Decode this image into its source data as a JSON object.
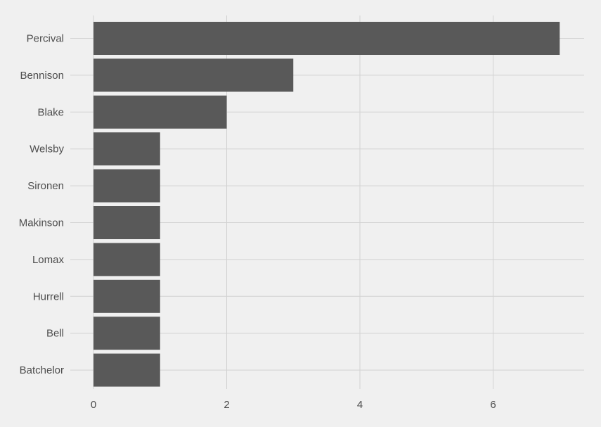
{
  "chart_data": {
    "type": "bar",
    "orientation": "horizontal",
    "title": "",
    "xlabel": "",
    "ylabel": "",
    "categories": [
      "Percival",
      "Bennison",
      "Blake",
      "Welsby",
      "Sironen",
      "Makinson",
      "Lomax",
      "Hurrell",
      "Bell",
      "Batchelor"
    ],
    "values": [
      7,
      3,
      2,
      1,
      1,
      1,
      1,
      1,
      1,
      1
    ],
    "xlim": [
      0,
      7.35
    ],
    "x_ticks": [
      0,
      2,
      4,
      6
    ],
    "x_tick_labels": [
      "0",
      "2",
      "4",
      "6"
    ],
    "grid": true,
    "legend": "none",
    "colors": {
      "bar": "#595959",
      "background": "#f0f0f0",
      "grid": "#d2d2d2",
      "text": "#4d4d4d"
    }
  }
}
